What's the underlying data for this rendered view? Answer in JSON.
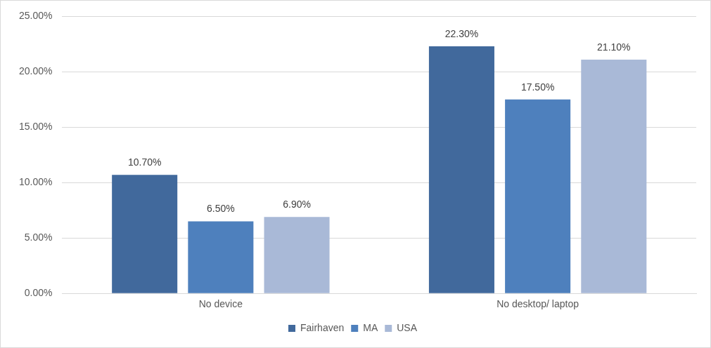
{
  "chart_data": {
    "type": "bar",
    "categories": [
      "No device",
      "No desktop/ laptop"
    ],
    "series": [
      {
        "name": "Fairhaven",
        "color": "#41699c",
        "values": [
          10.7,
          22.3
        ],
        "value_labels": [
          "10.70%",
          "22.30%"
        ]
      },
      {
        "name": "MA",
        "color": "#4e80bd",
        "values": [
          6.5,
          17.5
        ],
        "value_labels": [
          "6.50%",
          "17.50%"
        ]
      },
      {
        "name": "USA",
        "color": "#a9b9d7",
        "values": [
          6.9,
          21.1
        ],
        "value_labels": [
          "6.90%",
          "21.10%"
        ]
      }
    ],
    "ylim": [
      0,
      25
    ],
    "yticks": [
      {
        "value": 0,
        "label": "0.00%"
      },
      {
        "value": 5,
        "label": "5.00%"
      },
      {
        "value": 10,
        "label": "10.00%"
      },
      {
        "value": 15,
        "label": "15.00%"
      },
      {
        "value": 20,
        "label": "20.00%"
      },
      {
        "value": 25,
        "label": "25.00%"
      }
    ],
    "grid": "y",
    "legend": "bottom"
  }
}
